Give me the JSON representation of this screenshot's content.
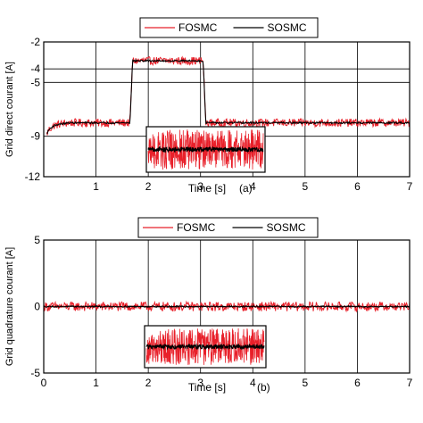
{
  "chart_data": [
    {
      "type": "line",
      "panel": "(a)",
      "ylabel": "Grid direct courant [A]",
      "xlabel": "Time [s]",
      "xlim": [
        0,
        7
      ],
      "ylim": [
        -12,
        -2
      ],
      "xticks": [
        1,
        2,
        3,
        4,
        5,
        6,
        7
      ],
      "yticks": [
        -2,
        -4,
        -5,
        -9,
        -12
      ],
      "grid": true,
      "legend": "top-center",
      "series": [
        {
          "name": "FOSMC",
          "color": "#e8202a",
          "x": [
            0.05,
            0.1,
            0.2,
            0.3,
            0.5,
            1.0,
            1.65,
            1.7,
            2.5,
            3.05,
            3.1,
            4.0,
            5.0,
            6.0,
            7.0
          ],
          "values": [
            -8.9,
            -8.5,
            -8.2,
            -8.1,
            -8.0,
            -8.0,
            -8.0,
            -3.4,
            -3.4,
            -3.4,
            -8.0,
            -8.0,
            -8.0,
            -8.0,
            -8.0
          ],
          "noise": 0.3
        },
        {
          "name": "SOSMC",
          "color": "#000000",
          "x": [
            0.05,
            0.1,
            0.2,
            0.3,
            0.5,
            1.0,
            1.65,
            1.7,
            2.5,
            3.05,
            3.1,
            4.0,
            5.0,
            6.0,
            7.0
          ],
          "values": [
            -8.9,
            -8.5,
            -8.2,
            -8.1,
            -8.0,
            -8.0,
            -8.0,
            -3.4,
            -3.4,
            -3.4,
            -8.0,
            -8.0,
            -8.0,
            -8.0,
            -8.0
          ],
          "noise": 0.06
        }
      ],
      "inset": {
        "xrange": [
          1.95,
          4.25
        ],
        "yrange": [
          -11.8,
          -9.3
        ]
      }
    },
    {
      "type": "line",
      "panel": "(b)",
      "ylabel": "Grid quadrature courant [A]",
      "xlabel": "Time [s]",
      "xlim": [
        0,
        7
      ],
      "ylim": [
        -5,
        5
      ],
      "xticks": [
        0,
        1,
        2,
        3,
        4,
        5,
        6,
        7
      ],
      "yticks": [
        5,
        0,
        -5
      ],
      "grid": true,
      "legend": "top-center",
      "series": [
        {
          "name": "FOSMC",
          "color": "#e8202a",
          "x": [
            0,
            7
          ],
          "values": [
            0,
            0
          ],
          "noise": 0.35
        },
        {
          "name": "SOSMC",
          "color": "#000000",
          "x": [
            0,
            7
          ],
          "values": [
            0,
            0
          ],
          "noise": 0.05
        }
      ],
      "inset": {
        "xrange": [
          1.9,
          4.3
        ],
        "yrange": [
          -4.75,
          -1.35
        ]
      }
    }
  ]
}
